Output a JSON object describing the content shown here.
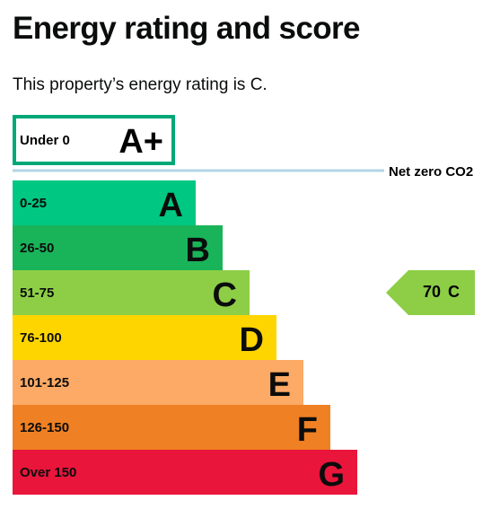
{
  "page": {
    "title": "Energy rating and score",
    "subtitle": "This property’s energy rating is C."
  },
  "chart_data": {
    "type": "bar",
    "top_band": {
      "range": "Under 0",
      "letter": "A+",
      "color": "#00a878"
    },
    "net_zero_label": "Net zero CO2",
    "net_zero_line_color": "#b1d6e3",
    "bands": [
      {
        "range": "0-25",
        "letter": "A",
        "color": "#00c781"
      },
      {
        "range": "26-50",
        "letter": "B",
        "color": "#19b459"
      },
      {
        "range": "51-75",
        "letter": "C",
        "color": "#8dce46"
      },
      {
        "range": "76-100",
        "letter": "D",
        "color": "#ffd500"
      },
      {
        "range": "101-125",
        "letter": "E",
        "color": "#fcaa65"
      },
      {
        "range": "126-150",
        "letter": "F",
        "color": "#ef8023"
      },
      {
        "range": "Over 150",
        "letter": "G",
        "color": "#e9153b"
      }
    ],
    "current": {
      "score": 70,
      "letter": "C",
      "score_label": "70",
      "color": "#8dce46"
    }
  }
}
